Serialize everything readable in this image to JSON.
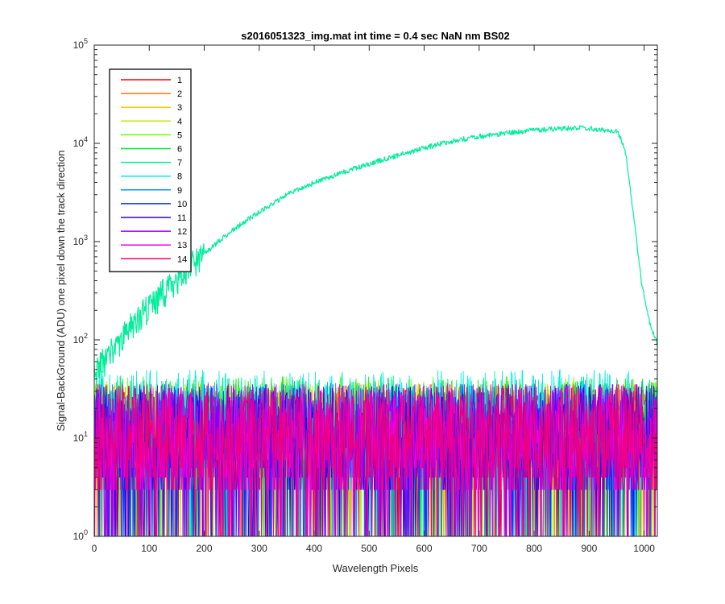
{
  "chart_data": {
    "type": "line",
    "title": "s2016051323_img.mat int time = 0.4 sec  NaN nm BS02",
    "xlabel": "Wavelength Pixels",
    "ylabel": "Signal-BackGround (ADU) one pixel down the track direction",
    "x_scale": "linear",
    "y_scale": "log",
    "xlim": [
      0,
      1024
    ],
    "ylim": [
      1,
      100000
    ],
    "x_ticks": [
      "0",
      "100",
      "200",
      "300",
      "400",
      "500",
      "600",
      "700",
      "800",
      "900",
      "1000"
    ],
    "x_tick_values": [
      0,
      100,
      200,
      300,
      400,
      500,
      600,
      700,
      800,
      900,
      1000
    ],
    "y_tick_values": [
      1,
      10,
      100,
      1000,
      10000,
      100000
    ],
    "y_tick_base": "10",
    "y_tick_exponents": [
      "0",
      "1",
      "2",
      "3",
      "4",
      "5"
    ],
    "grid": false,
    "legend_position": "top-left",
    "series": [
      {
        "name": "1",
        "color": "#ff0000",
        "kind": "noise",
        "level": 10
      },
      {
        "name": "2",
        "color": "#ff7700",
        "kind": "noise",
        "level": 10
      },
      {
        "name": "3",
        "color": "#ffcc00",
        "kind": "noise",
        "level": 10
      },
      {
        "name": "4",
        "color": "#bbee00",
        "kind": "noise",
        "level": 11
      },
      {
        "name": "5",
        "color": "#66ff00",
        "kind": "noise",
        "level": 12
      },
      {
        "name": "6",
        "color": "#00ee33",
        "kind": "noise",
        "level": 12
      },
      {
        "name": "7",
        "color": "#00ee99",
        "kind": "signal",
        "x": [
          0,
          10,
          25,
          50,
          75,
          100,
          125,
          150,
          175,
          200,
          250,
          300,
          350,
          400,
          450,
          500,
          550,
          600,
          650,
          700,
          750,
          800,
          850,
          880,
          900,
          930,
          950,
          965,
          980,
          995,
          1010,
          1024
        ],
        "values": [
          45,
          55,
          70,
          110,
          160,
          230,
          310,
          440,
          580,
          750,
          1300,
          2000,
          3000,
          4000,
          5000,
          6200,
          7500,
          9000,
          10500,
          11800,
          12800,
          13600,
          14200,
          14500,
          14200,
          13500,
          13500,
          9000,
          2000,
          400,
          150,
          90
        ]
      },
      {
        "name": "8",
        "color": "#00eedd",
        "kind": "noise",
        "level": 14
      },
      {
        "name": "9",
        "color": "#0099ff",
        "kind": "noise",
        "level": 11
      },
      {
        "name": "10",
        "color": "#0033ff",
        "kind": "noise",
        "level": 10
      },
      {
        "name": "11",
        "color": "#3300dd",
        "kind": "noise",
        "level": 10
      },
      {
        "name": "12",
        "color": "#9900ee",
        "kind": "noise",
        "level": 10
      },
      {
        "name": "13",
        "color": "#ee00dd",
        "kind": "noise",
        "level": 10
      },
      {
        "name": "14",
        "color": "#ee0077",
        "kind": "noise",
        "level": 10
      }
    ]
  }
}
